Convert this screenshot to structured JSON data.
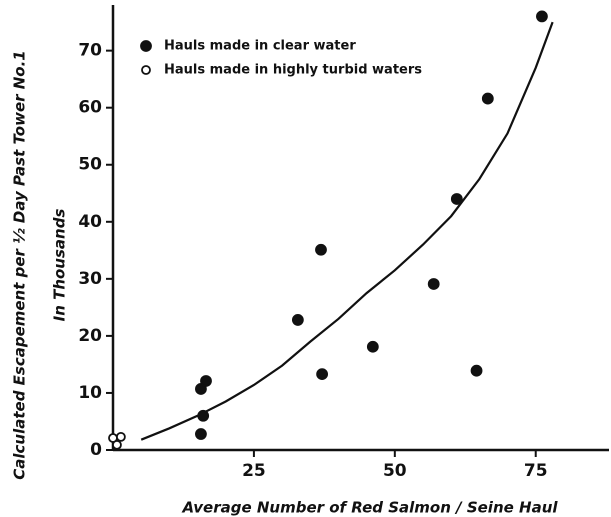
{
  "chart_data": {
    "type": "scatter",
    "xlabel": "Average Number of Red Salmon / Seine Haul",
    "ylabel": [
      "Calculated Escapement per ½ Day Past Tower No.1",
      "In Thousands"
    ],
    "xlim": [
      0,
      88
    ],
    "ylim": [
      0,
      78
    ],
    "xticks": [
      25,
      50,
      75
    ],
    "yticks": [
      0,
      10,
      20,
      30,
      40,
      50,
      60,
      70
    ],
    "legend": "upper left",
    "series": [
      {
        "name": "Hauls made in clear water",
        "color": "#111111",
        "filled": true,
        "x": [
          15.6,
          16,
          15.6,
          16.5,
          32.8,
          36.9,
          37.1,
          46.1,
          56.9,
          61,
          64.5,
          66.5,
          76.1
        ],
        "values": [
          10.7,
          6.0,
          2.8,
          12.1,
          22.8,
          35.1,
          13.3,
          18.1,
          29.1,
          44,
          13.9,
          61.6,
          76
        ]
      },
      {
        "name": "Hauls made in highly turbid waters",
        "color": "#111111",
        "filled": false,
        "x": [
          0,
          1.4,
          0.7
        ],
        "values": [
          2.1,
          2.3,
          0.9
        ]
      }
    ],
    "curve": {
      "color": "#111111",
      "x": [
        5,
        10,
        15,
        20,
        25,
        30,
        35,
        40,
        45,
        50,
        55,
        60,
        65,
        70,
        75,
        78
      ],
      "values": [
        1.8,
        3.8,
        6.0,
        8.5,
        11.4,
        14.8,
        19.0,
        23.0,
        27.5,
        31.5,
        36,
        41,
        47.5,
        55.5,
        67,
        75
      ]
    }
  }
}
